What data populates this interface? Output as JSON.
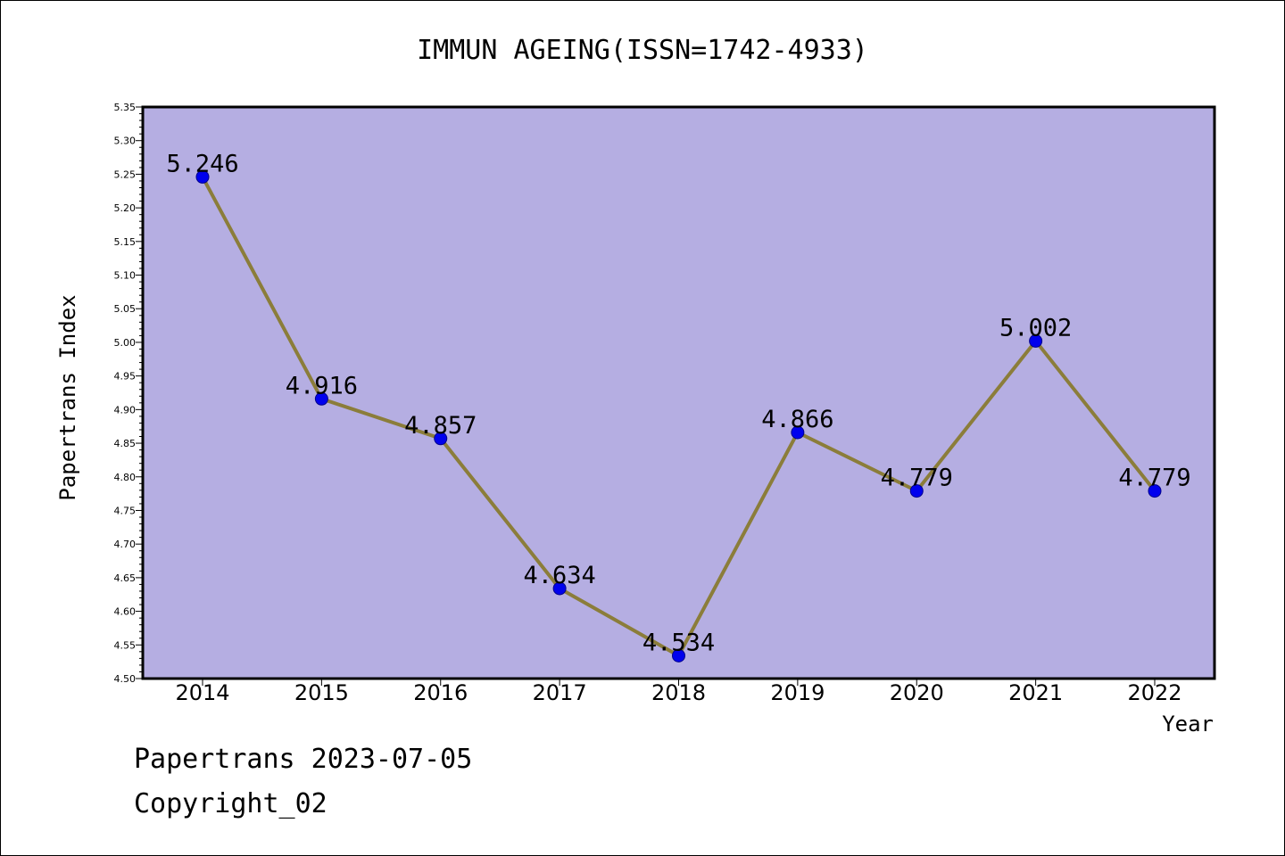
{
  "colors": {
    "plot_background": "#b5aee2",
    "line": "#8b7d3a",
    "marker": "#0000ee",
    "marker_edge": "#00008b"
  },
  "chart_data": {
    "type": "line",
    "title": "IMMUN AGEING(ISSN=1742-4933)",
    "xlabel": "Year",
    "ylabel": "Papertrans Index",
    "ylim": [
      4.5,
      5.35
    ],
    "ytick_step": 0.05,
    "grid": false,
    "categories": [
      "2014",
      "2015",
      "2016",
      "2017",
      "2018",
      "2019",
      "2020",
      "2021",
      "2022"
    ],
    "series": [
      {
        "values": [
          5.246,
          4.916,
          4.857,
          4.634,
          4.534,
          4.866,
          4.779,
          5.002,
          4.779
        ],
        "labels": [
          "5.246",
          "4.916",
          "4.857",
          "4.634",
          "4.534",
          "4.866",
          "4.779",
          "5.002",
          "4.779"
        ]
      }
    ]
  },
  "footer": {
    "line1": "Papertrans 2023-07-05",
    "line2": "Copyright_02"
  }
}
